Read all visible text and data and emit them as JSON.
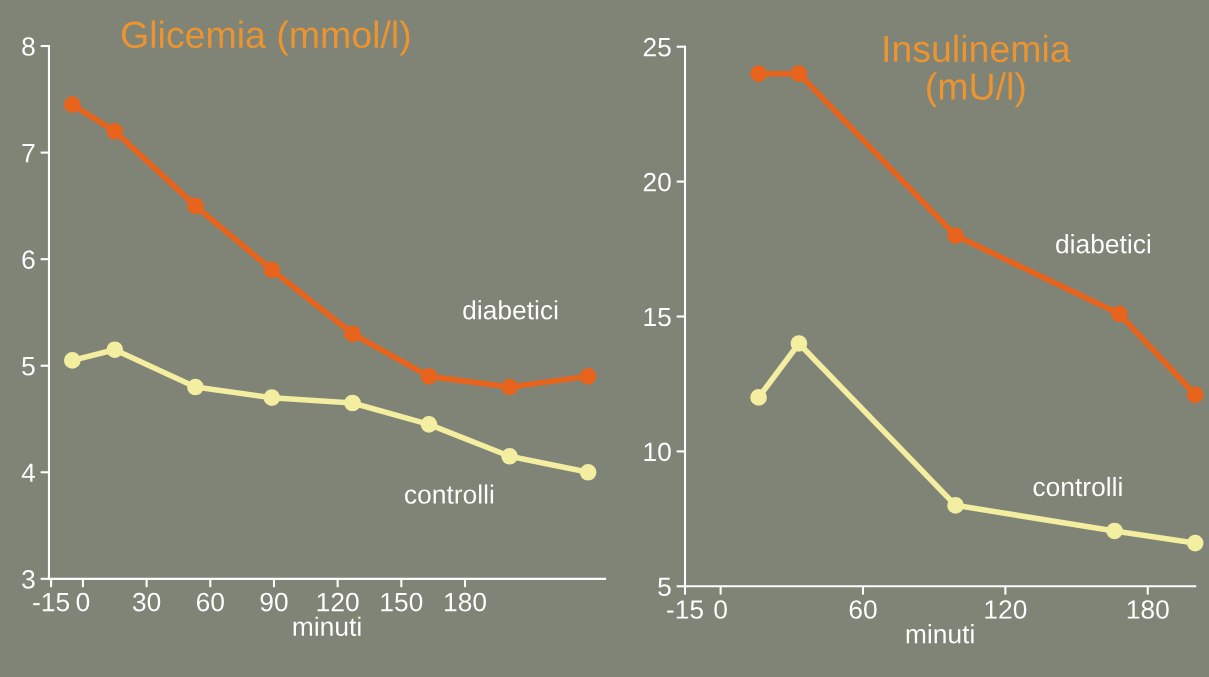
{
  "chart_data": [
    {
      "type": "line",
      "title": "Glicemia (mmol/l)",
      "xlabel": "minuti",
      "xlim": [
        -16,
        246
      ],
      "xticks": [
        -15,
        0,
        30,
        60,
        90,
        120,
        150,
        180
      ],
      "ylim": [
        3,
        8
      ],
      "yticks": [
        3,
        4,
        5,
        6,
        7,
        8
      ],
      "marker": "circle",
      "line_style": "solid",
      "series": [
        {
          "x": [
            -5,
            15,
            53,
            89,
            127,
            163,
            201,
            238
          ],
          "values": [
            7.45,
            7.2,
            6.5,
            5.9,
            5.3,
            4.9,
            4.8,
            4.9
          ],
          "color": "#e8641c"
        },
        {
          "x": [
            -5,
            15,
            53,
            89,
            127,
            163,
            201,
            238
          ],
          "values": [
            5.05,
            5.15,
            4.8,
            4.7,
            4.65,
            4.45,
            4.15,
            4.0
          ],
          "color": "#f3eea0"
        }
      ],
      "annotations": [
        "diabetici",
        "controlli"
      ]
    },
    {
      "type": "line",
      "title": "Insulinemia\n(mU/l)",
      "xlabel": "minuti",
      "xlim": [
        -15,
        200
      ],
      "xticks": [
        -15,
        0,
        60,
        120,
        180
      ],
      "ylim": [
        5,
        25
      ],
      "yticks": [
        5,
        10,
        15,
        20,
        25
      ],
      "marker": "circle",
      "line_style": "solid",
      "series": [
        {
          "x": [
            16,
            33,
            99,
            168,
            200
          ],
          "values": [
            24.0,
            24.0,
            18.0,
            15.1,
            12.1
          ],
          "color": "#e8641c"
        },
        {
          "x": [
            16,
            33,
            99,
            166,
            200
          ],
          "values": [
            12.0,
            14.0,
            8.0,
            7.05,
            6.6
          ],
          "color": "#f3eea0"
        }
      ],
      "annotations": [
        "diabetici",
        "controlli"
      ]
    }
  ]
}
